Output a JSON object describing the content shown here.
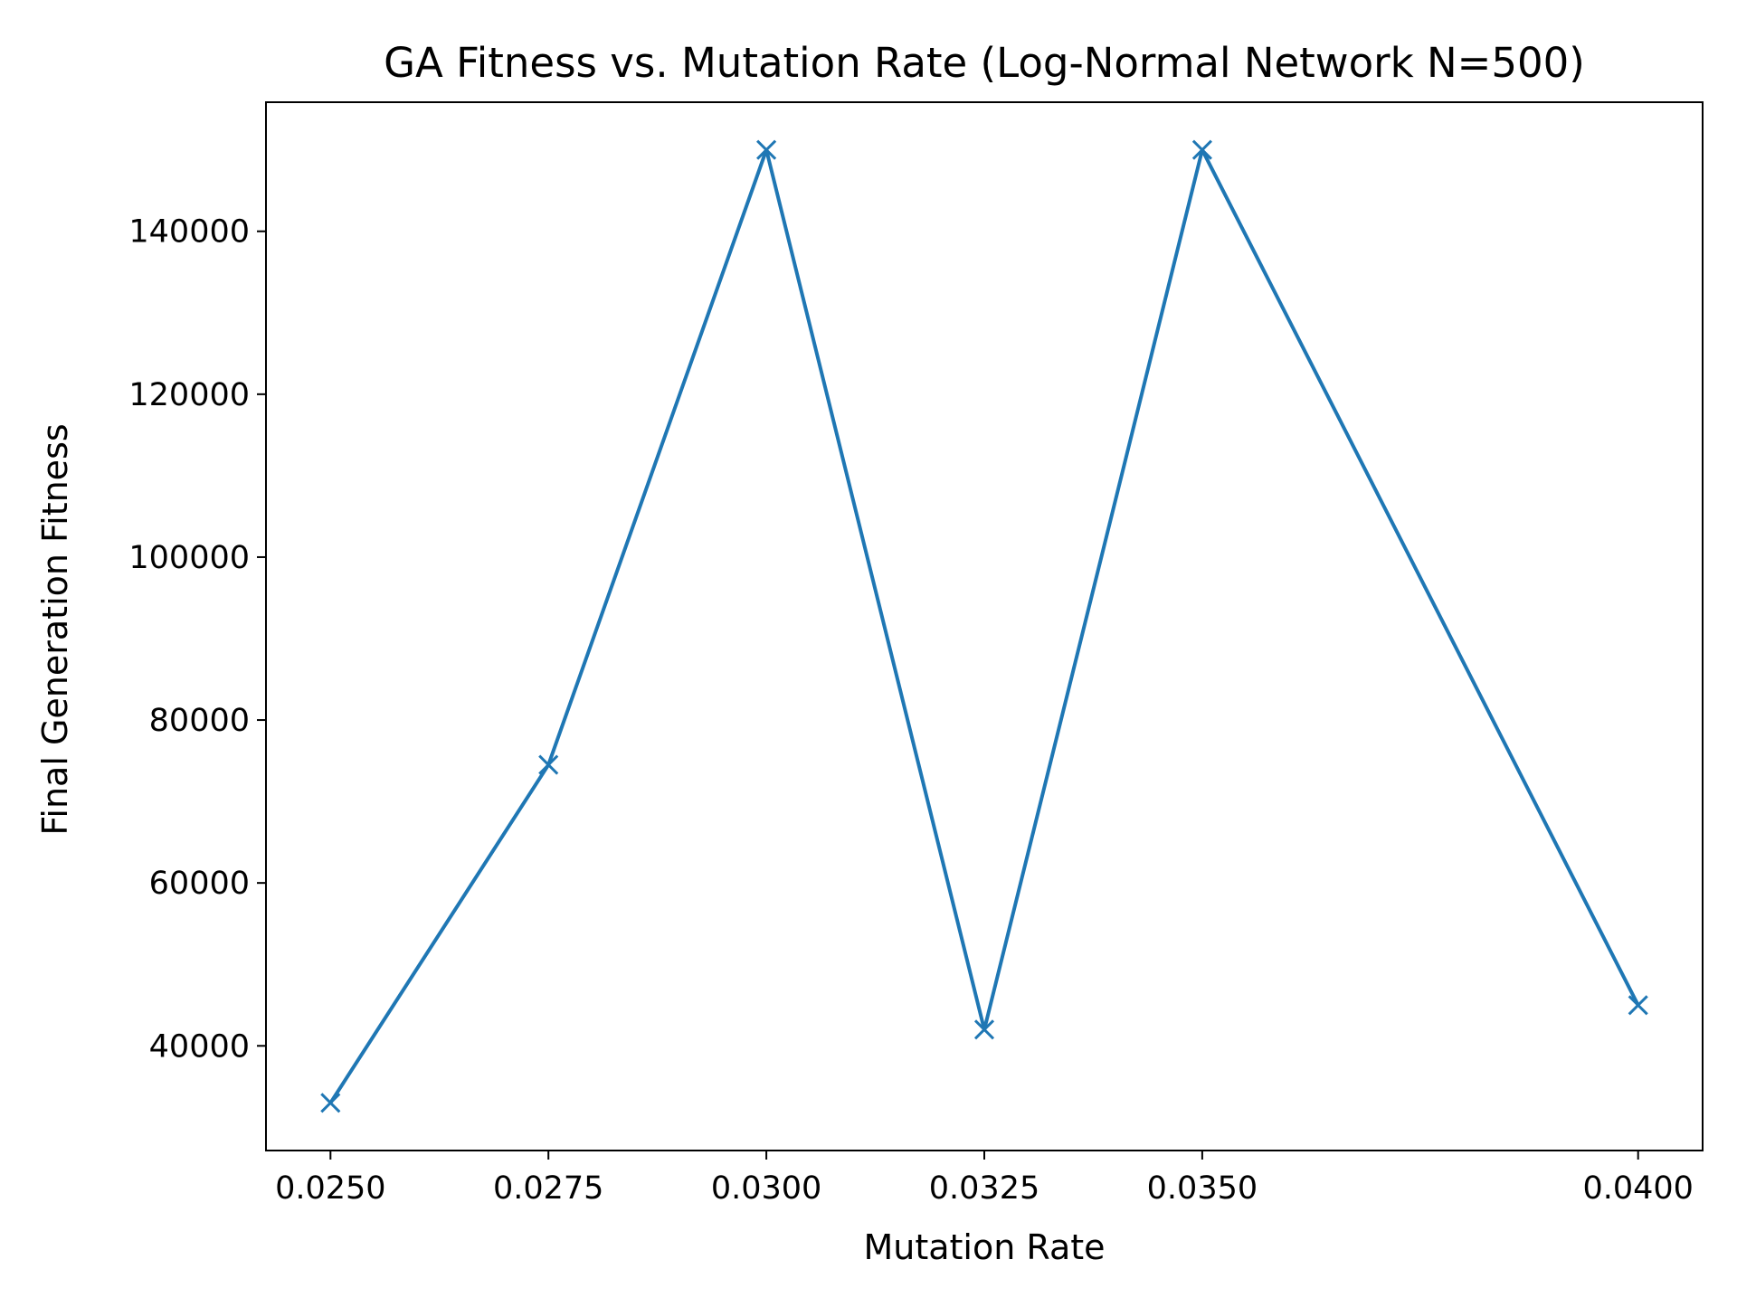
{
  "chart_data": {
    "type": "line",
    "title": "GA Fitness vs. Mutation Rate (Log-Normal Network N=500)",
    "xlabel": "Mutation Rate",
    "ylabel": "Final Generation Fitness",
    "x": [
      0.025,
      0.0275,
      0.03,
      0.0325,
      0.035,
      0.04
    ],
    "series": [
      {
        "values": [
          33000,
          74500,
          150000,
          42000,
          150000,
          45000
        ],
        "color": "#1f77b4",
        "marker": "x"
      }
    ],
    "xticks": [
      0.025,
      0.0275,
      0.03,
      0.0325,
      0.035,
      0.04
    ],
    "xtick_labels": [
      "0.0250",
      "0.0275",
      "0.0300",
      "0.0325",
      "0.0350",
      "0.0400"
    ],
    "yticks": [
      40000,
      60000,
      80000,
      100000,
      120000,
      140000
    ],
    "ytick_labels": [
      "40000",
      "60000",
      "80000",
      "100000",
      "120000",
      "140000"
    ],
    "xlim": [
      0.02426,
      0.04074
    ],
    "ylim": [
      27150,
      155850
    ],
    "grid": false,
    "legend": "none"
  }
}
